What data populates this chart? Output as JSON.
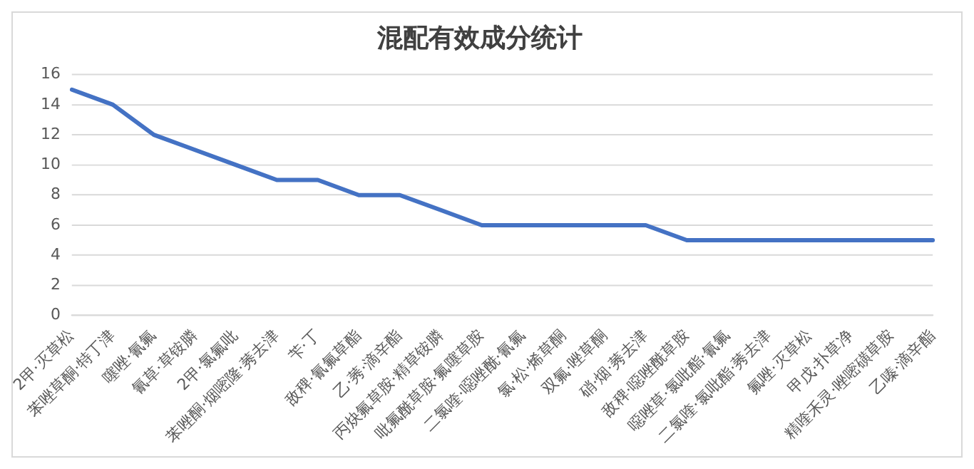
{
  "chart_data": {
    "type": "line",
    "title": "混配有效成分统计",
    "categories": [
      "2甲·灭草松",
      "苯唑草酮·特丁津",
      "噻唑·氰氟",
      "氰草·草铵膦",
      "2甲·氯氟吡",
      "苯唑酮·烟嘧隆·莠去津",
      "苄·丁",
      "敌稗·氰氟草酯",
      "乙·莠·滴辛酯",
      "丙炔氟草胺·精草铵膦",
      "吡氟酰草胺·氟噻草胺",
      "二氯喹·噁唑酰·氰氟",
      "氯·松·烯草酮",
      "双氟·唑草酮",
      "硝·烟·莠去津",
      "敌稗·噁唑酰草胺",
      "噁唑草·氯吡酯·氰氟",
      "二氯喹·氯吡酯·莠去津",
      "氟唑·灭草松",
      "甲戊·扑草净",
      "精喹禾灵·唑嘧磺草胺",
      "乙嗪·滴辛酯"
    ],
    "series": [
      {
        "color": "#4472c4",
        "values": [
          15,
          14,
          12,
          11,
          10,
          9,
          9,
          8,
          8,
          7,
          6,
          6,
          6,
          6,
          6,
          5,
          5,
          5,
          5,
          5,
          5,
          5
        ]
      }
    ],
    "ylim": [
      0,
      16
    ],
    "yticks": [
      0,
      2,
      4,
      6,
      8,
      10,
      12,
      14,
      16
    ],
    "grid": "y",
    "legend": false,
    "marker": "none",
    "line_style": "solid"
  }
}
